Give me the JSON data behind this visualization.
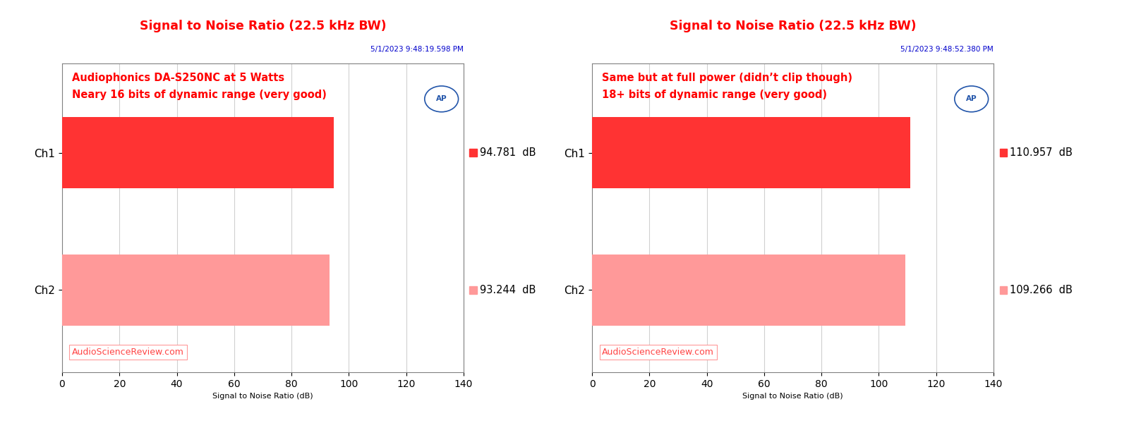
{
  "charts": [
    {
      "title": "Signal to Noise Ratio (22.5 kHz BW)",
      "timestamp": "5/1/2023 9:48:19.598 PM",
      "annotation_line1": "Audiophonics DA-S250NC at 5 Watts",
      "annotation_line2": "Neary 16 bits of dynamic range (very good)",
      "channels": [
        "Ch1",
        "Ch2"
      ],
      "values": [
        94.781,
        93.244
      ],
      "colors": [
        "#FF3333",
        "#FF9999"
      ],
      "xlim": [
        0,
        140
      ],
      "xticks": [
        0,
        20,
        40,
        60,
        80,
        100,
        120,
        140
      ],
      "xlabel": "Signal to Noise Ratio (dB)",
      "value_labels": [
        "94.781  dB",
        "93.244  dB"
      ],
      "watermark": "AudioScienceReview.com"
    },
    {
      "title": "Signal to Noise Ratio (22.5 kHz BW)",
      "timestamp": "5/1/2023 9:48:52.380 PM",
      "annotation_line1": "Same but at full power (didn’t clip though)",
      "annotation_line2": "18+ bits of dynamic range (very good)",
      "channels": [
        "Ch1",
        "Ch2"
      ],
      "values": [
        110.957,
        109.266
      ],
      "colors": [
        "#FF3333",
        "#FF9999"
      ],
      "xlim": [
        0,
        140
      ],
      "xticks": [
        0,
        20,
        40,
        60,
        80,
        100,
        120,
        140
      ],
      "xlabel": "Signal to Noise Ratio (dB)",
      "value_labels": [
        "110.957  dB",
        "109.266  dB"
      ],
      "watermark": "AudioScienceReview.com"
    }
  ],
  "title_color": "#FF0000",
  "timestamp_color": "#0000CC",
  "annotation_color": "#FF0000",
  "watermark_color": "#FF4444",
  "background_color": "#FFFFFF",
  "bar_height": 0.52,
  "fig_width": 16.0,
  "fig_height": 6.0,
  "dpi": 100
}
